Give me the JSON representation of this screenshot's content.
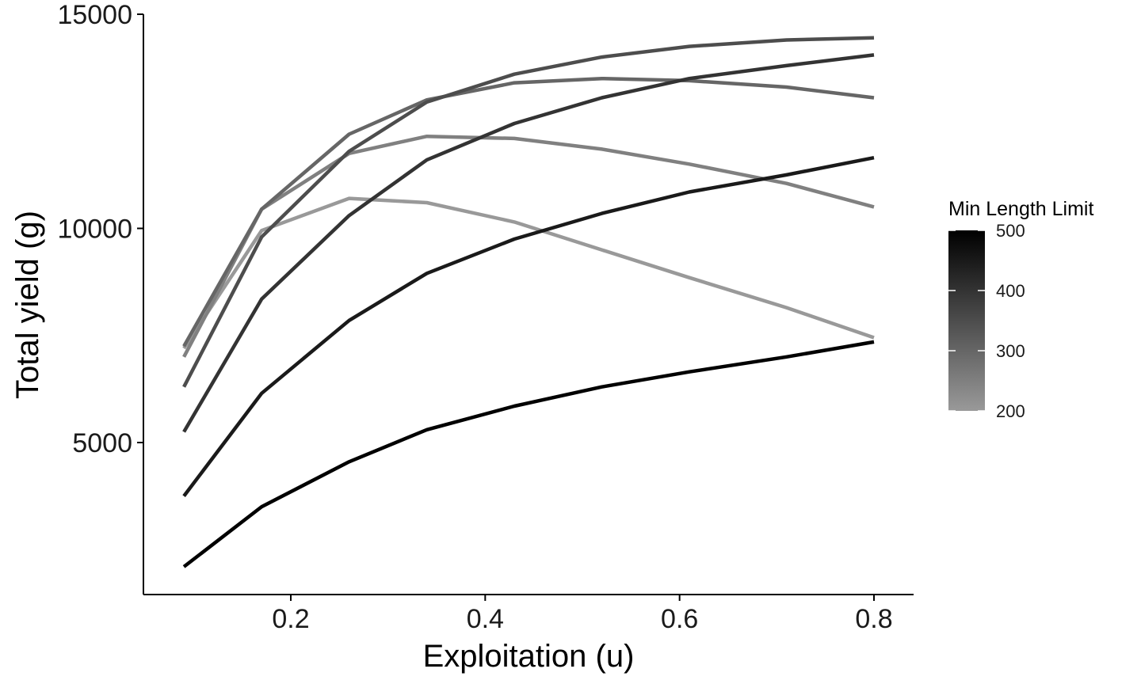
{
  "chart_data": {
    "type": "line",
    "title": "",
    "xlabel": "Exploitation (u)",
    "ylabel": "Total yield (g)",
    "xlim": [
      0.05,
      0.85
    ],
    "ylim": [
      1500,
      15000
    ],
    "x_ticks": [
      0.2,
      0.4,
      0.6,
      0.8
    ],
    "x_tick_labels": [
      "0.2",
      "0.4",
      "0.6",
      "0.8"
    ],
    "y_ticks": [
      5000,
      10000,
      15000
    ],
    "y_tick_labels": [
      "5000",
      "10000",
      "15000"
    ],
    "grid": false,
    "legend": {
      "title": "Min Length Limit",
      "placement": "right",
      "type": "colorbar",
      "range": [
        200,
        500
      ],
      "ticks": [
        200,
        300,
        400,
        500
      ],
      "tick_labels": [
        "200",
        "300",
        "400",
        "500"
      ],
      "color_low": "#999999",
      "color_high": "#000000"
    },
    "x": [
      0.09,
      0.17,
      0.26,
      0.34,
      0.43,
      0.52,
      0.61,
      0.71,
      0.8
    ],
    "series": [
      {
        "length_limit": 200,
        "values": [
          7200,
          9950,
          10700,
          10600,
          10150,
          9500,
          8850,
          8150,
          7450
        ]
      },
      {
        "length_limit": 250,
        "values": [
          7000,
          10450,
          11750,
          12150,
          12100,
          11850,
          11500,
          11050,
          10500
        ]
      },
      {
        "length_limit": 300,
        "values": [
          7250,
          10450,
          12200,
          13000,
          13400,
          13500,
          13450,
          13300,
          13050
        ]
      },
      {
        "length_limit": 350,
        "values": [
          6300,
          9800,
          11800,
          12950,
          13600,
          14000,
          14250,
          14400,
          14450
        ]
      },
      {
        "length_limit": 400,
        "values": [
          5250,
          8350,
          10300,
          11600,
          12450,
          13050,
          13500,
          13800,
          14050
        ]
      },
      {
        "length_limit": 450,
        "values": [
          3750,
          6150,
          7850,
          8950,
          9750,
          10350,
          10850,
          11250,
          11650
        ]
      },
      {
        "length_limit": 500,
        "values": [
          2100,
          3500,
          4550,
          5300,
          5850,
          6300,
          6650,
          7000,
          7350
        ]
      }
    ]
  }
}
